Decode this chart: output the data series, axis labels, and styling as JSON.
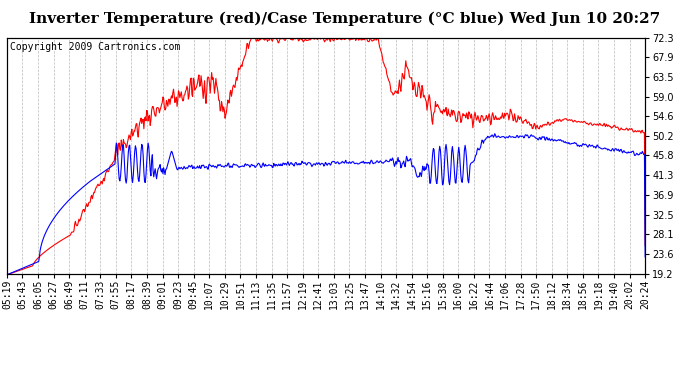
{
  "title": "Inverter Temperature (red)/Case Temperature (°C blue) Wed Jun 10 20:27",
  "copyright": "Copyright 2009 Cartronics.com",
  "ylabel_right": [
    "72.3",
    "67.9",
    "63.5",
    "59.0",
    "54.6",
    "50.2",
    "45.8",
    "41.3",
    "36.9",
    "32.5",
    "28.1",
    "23.6",
    "19.2"
  ],
  "ymin": 19.2,
  "ymax": 72.3,
  "background_color": "#ffffff",
  "grid_color": "#bbbbbb",
  "red_color": "#ff0000",
  "blue_color": "#0000ff",
  "title_fontsize": 11,
  "copyright_fontsize": 7,
  "tick_fontsize": 7,
  "x_tick_labels": [
    "05:19",
    "05:43",
    "06:05",
    "06:27",
    "06:49",
    "07:11",
    "07:33",
    "07:55",
    "08:17",
    "08:39",
    "09:01",
    "09:23",
    "09:45",
    "10:07",
    "10:29",
    "10:51",
    "11:13",
    "11:35",
    "11:57",
    "12:19",
    "12:41",
    "13:03",
    "13:25",
    "13:47",
    "14:10",
    "14:32",
    "14:54",
    "15:16",
    "15:38",
    "16:00",
    "16:22",
    "16:44",
    "17:06",
    "17:28",
    "17:50",
    "18:12",
    "18:34",
    "18:56",
    "19:18",
    "19:40",
    "20:02",
    "20:24"
  ]
}
